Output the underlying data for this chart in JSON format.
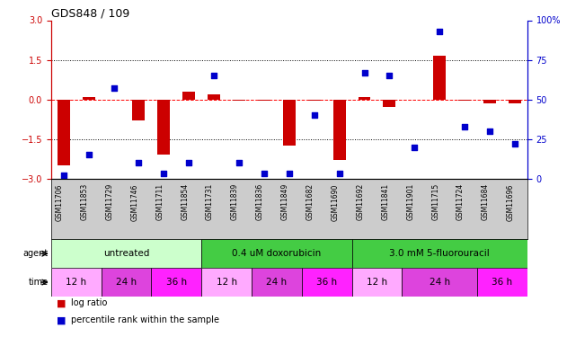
{
  "title": "GDS848 / 109",
  "samples": [
    "GSM11706",
    "GSM11853",
    "GSM11729",
    "GSM11746",
    "GSM11711",
    "GSM11854",
    "GSM11731",
    "GSM11839",
    "GSM11836",
    "GSM11849",
    "GSM11682",
    "GSM11690",
    "GSM11692",
    "GSM11841",
    "GSM11901",
    "GSM11715",
    "GSM11724",
    "GSM11684",
    "GSM11696"
  ],
  "log_ratio": [
    -2.5,
    0.1,
    0.0,
    -0.8,
    -2.1,
    0.3,
    0.2,
    -0.05,
    -0.05,
    -1.75,
    -0.05,
    -2.3,
    0.1,
    -0.3,
    0.0,
    1.65,
    -0.05,
    -0.15,
    -0.15
  ],
  "percentile": [
    2,
    15,
    57,
    10,
    3,
    10,
    65,
    10,
    3,
    3,
    40,
    3,
    67,
    65,
    20,
    93,
    33,
    30,
    22
  ],
  "ylim_left": [
    -3,
    3
  ],
  "ylim_right": [
    0,
    100
  ],
  "yticks_left": [
    -3,
    -1.5,
    0,
    1.5,
    3
  ],
  "yticks_right": [
    0,
    25,
    50,
    75,
    100
  ],
  "bar_color": "#cc0000",
  "dot_color": "#0000cc",
  "bar_width": 0.5,
  "dot_size": 25,
  "agent_data": [
    {
      "label": "untreated",
      "start": 0,
      "end": 5,
      "color": "#ccffcc"
    },
    {
      "label": "0.4 uM doxorubicin",
      "start": 6,
      "end": 11,
      "color": "#44cc44"
    },
    {
      "label": "3.0 mM 5-fluorouracil",
      "start": 12,
      "end": 18,
      "color": "#44cc44"
    }
  ],
  "time_data": [
    {
      "label": "12 h",
      "start": 0,
      "end": 1,
      "color": "#ffaaff"
    },
    {
      "label": "24 h",
      "start": 2,
      "end": 3,
      "color": "#dd44dd"
    },
    {
      "label": "36 h",
      "start": 4,
      "end": 5,
      "color": "#ff22ff"
    },
    {
      "label": "12 h",
      "start": 6,
      "end": 7,
      "color": "#ffaaff"
    },
    {
      "label": "24 h",
      "start": 8,
      "end": 9,
      "color": "#dd44dd"
    },
    {
      "label": "36 h",
      "start": 10,
      "end": 11,
      "color": "#ff22ff"
    },
    {
      "label": "12 h",
      "start": 12,
      "end": 13,
      "color": "#ffaaff"
    },
    {
      "label": "24 h",
      "start": 14,
      "end": 16,
      "color": "#dd44dd"
    },
    {
      "label": "36 h",
      "start": 17,
      "end": 18,
      "color": "#ff22ff"
    }
  ],
  "left_axis_color": "#cc0000",
  "right_axis_color": "#0000cc",
  "bg_color": "#ffffff",
  "sample_label_bg": "#cccccc",
  "legend_red_label": "log ratio",
  "legend_blue_label": "percentile rank within the sample"
}
